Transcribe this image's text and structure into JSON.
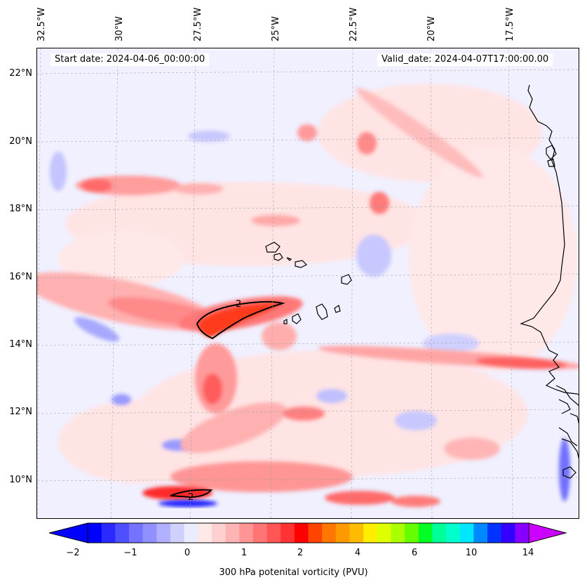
{
  "map": {
    "start_label": "Start date: 2024-04-06_00:00:00",
    "valid_label": "Valid_date: 2024-04-07T17:00:00.00",
    "lon_labels": [
      "32.5°W",
      "30°W",
      "27.5°W",
      "25°W",
      "22.5°W",
      "20°W",
      "17.5°W"
    ],
    "lat_labels": [
      "22°N",
      "20°N",
      "18°N",
      "16°N",
      "14°N",
      "12°N",
      "10°N"
    ],
    "contour_labels": [
      "2",
      "2"
    ]
  },
  "colorbar": {
    "label": "300 hPa potenital vorticity (PVU)",
    "ticks": [
      "−2",
      "−1",
      "0",
      "1",
      "2",
      "4",
      "6",
      "10",
      "14"
    ],
    "colors": [
      "#0000ff",
      "#2a2aff",
      "#4f4fff",
      "#7373ff",
      "#9090ff",
      "#b0b0ff",
      "#d0d0ff",
      "#ececff",
      "#ffe8e8",
      "#ffd0d0",
      "#ffb4b4",
      "#ff9595",
      "#ff7575",
      "#ff5555",
      "#ff3333",
      "#ff0000",
      "#ff4400",
      "#ff7700",
      "#ff9900",
      "#ffbb00",
      "#ffee00",
      "#ddff00",
      "#aaff00",
      "#66ff00",
      "#00ff22",
      "#00ff99",
      "#00ffcc",
      "#00e6ff",
      "#0088ff",
      "#0033ff",
      "#3300ff",
      "#8800ff"
    ],
    "under_color": "#0000ff",
    "over_color": "#cc00ff"
  }
}
